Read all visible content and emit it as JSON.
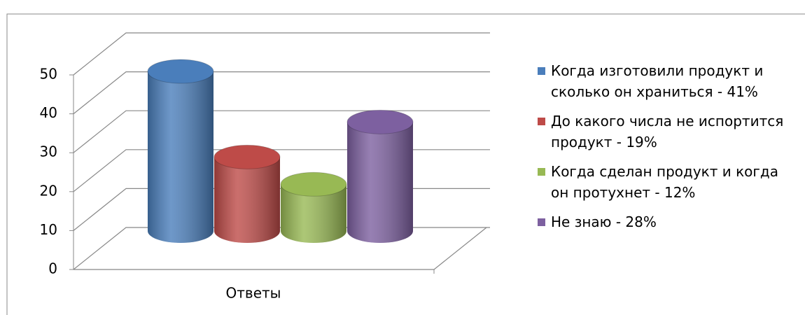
{
  "chart_data": {
    "type": "cylinder",
    "categories": [
      "Ответы"
    ],
    "series": [
      {
        "name": "Когда изготовили продукт и сколько он храниться - 41%",
        "color": "#4a7ebb",
        "values": [
          41
        ]
      },
      {
        "name": "До какого числа не испортится продукт - 19%",
        "color": "#be4b48",
        "values": [
          19
        ]
      },
      {
        "name": "Когда сделан продукт и когда он протухнет - 12%",
        "color": "#98b954",
        "values": [
          12
        ]
      },
      {
        "name": "Не знаю - 28%",
        "color": "#7d60a0",
        "values": [
          28
        ]
      }
    ],
    "ylim": [
      0,
      50
    ],
    "yticks": [
      0,
      10,
      20,
      30,
      40,
      50
    ],
    "grid": true,
    "legend": "right"
  }
}
